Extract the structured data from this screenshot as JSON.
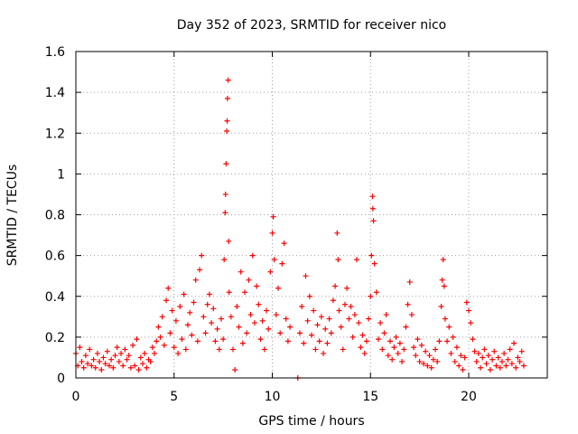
{
  "chart_data": {
    "type": "scatter",
    "title": "Day 352 of 2023, SRMTID for receiver nico",
    "xlabel": "GPS time / hours",
    "ylabel": "SRMTID / TECUs",
    "xlim": [
      0,
      24
    ],
    "ylim": [
      0,
      1.6
    ],
    "xticks": [
      0,
      5,
      10,
      15,
      20
    ],
    "yticks": [
      0,
      0.2,
      0.4,
      0.6,
      0.8,
      1,
      1.2,
      1.4,
      1.6
    ],
    "xtick_labels": [
      "0",
      "5",
      "10",
      "15",
      "20"
    ],
    "ytick_labels": [
      "0",
      "0.2",
      "0.4",
      "0.6",
      "0.8",
      "1",
      "1.2",
      "1.4",
      "1.6"
    ],
    "grid": true,
    "marker": "+",
    "color": "#ff0000",
    "series": [
      {
        "name": "SRMTID",
        "points": [
          [
            0.0,
            0.12
          ],
          [
            0.1,
            0.06
          ],
          [
            0.2,
            0.15
          ],
          [
            0.3,
            0.08
          ],
          [
            0.4,
            0.05
          ],
          [
            0.5,
            0.11
          ],
          [
            0.6,
            0.07
          ],
          [
            0.7,
            0.14
          ],
          [
            0.8,
            0.06
          ],
          [
            0.9,
            0.09
          ],
          [
            1.0,
            0.05
          ],
          [
            1.1,
            0.12
          ],
          [
            1.2,
            0.08
          ],
          [
            1.3,
            0.04
          ],
          [
            1.4,
            0.1
          ],
          [
            1.5,
            0.07
          ],
          [
            1.6,
            0.13
          ],
          [
            1.7,
            0.06
          ],
          [
            1.8,
            0.09
          ],
          [
            1.9,
            0.05
          ],
          [
            2.0,
            0.11
          ],
          [
            2.1,
            0.15
          ],
          [
            2.2,
            0.08
          ],
          [
            2.3,
            0.12
          ],
          [
            2.4,
            0.06
          ],
          [
            2.5,
            0.14
          ],
          [
            2.6,
            0.09
          ],
          [
            2.7,
            0.11
          ],
          [
            2.8,
            0.05
          ],
          [
            2.9,
            0.16
          ],
          [
            3.0,
            0.06
          ],
          [
            3.1,
            0.19
          ],
          [
            3.2,
            0.04
          ],
          [
            3.3,
            0.1
          ],
          [
            3.4,
            0.07
          ],
          [
            3.5,
            0.12
          ],
          [
            3.6,
            0.05
          ],
          [
            3.7,
            0.09
          ],
          [
            3.8,
            0.08
          ],
          [
            3.9,
            0.15
          ],
          [
            4.0,
            0.12
          ],
          [
            4.1,
            0.18
          ],
          [
            4.2,
            0.25
          ],
          [
            4.3,
            0.2
          ],
          [
            4.4,
            0.3
          ],
          [
            4.5,
            0.16
          ],
          [
            4.6,
            0.38
          ],
          [
            4.7,
            0.44
          ],
          [
            4.8,
            0.22
          ],
          [
            4.9,
            0.33
          ],
          [
            5.0,
            0.15
          ],
          [
            5.1,
            0.28
          ],
          [
            5.2,
            0.12
          ],
          [
            5.3,
            0.35
          ],
          [
            5.4,
            0.19
          ],
          [
            5.5,
            0.41
          ],
          [
            5.6,
            0.14
          ],
          [
            5.7,
            0.26
          ],
          [
            5.8,
            0.32
          ],
          [
            5.9,
            0.21
          ],
          [
            6.0,
            0.37
          ],
          [
            6.1,
            0.48
          ],
          [
            6.2,
            0.18
          ],
          [
            6.3,
            0.53
          ],
          [
            6.4,
            0.6
          ],
          [
            6.5,
            0.3
          ],
          [
            6.6,
            0.22
          ],
          [
            6.7,
            0.36
          ],
          [
            6.8,
            0.41
          ],
          [
            6.9,
            0.27
          ],
          [
            7.0,
            0.34
          ],
          [
            7.1,
            0.18
          ],
          [
            7.2,
            0.24
          ],
          [
            7.3,
            0.14
          ],
          [
            7.4,
            0.29
          ],
          [
            7.5,
            0.19
          ],
          [
            7.55,
            0.58
          ],
          [
            7.6,
            0.81
          ],
          [
            7.62,
            0.9
          ],
          [
            7.65,
            1.05
          ],
          [
            7.68,
            1.21
          ],
          [
            7.7,
            1.26
          ],
          [
            7.72,
            1.37
          ],
          [
            7.75,
            1.46
          ],
          [
            7.78,
            0.67
          ],
          [
            7.8,
            0.42
          ],
          [
            7.9,
            0.3
          ],
          [
            8.0,
            0.14
          ],
          [
            8.1,
            0.04
          ],
          [
            8.2,
            0.35
          ],
          [
            8.3,
            0.25
          ],
          [
            8.4,
            0.52
          ],
          [
            8.5,
            0.17
          ],
          [
            8.6,
            0.42
          ],
          [
            8.7,
            0.22
          ],
          [
            8.8,
            0.48
          ],
          [
            8.9,
            0.31
          ],
          [
            9.0,
            0.6
          ],
          [
            9.1,
            0.27
          ],
          [
            9.2,
            0.45
          ],
          [
            9.3,
            0.36
          ],
          [
            9.4,
            0.19
          ],
          [
            9.5,
            0.28
          ],
          [
            9.6,
            0.14
          ],
          [
            9.7,
            0.33
          ],
          [
            9.8,
            0.24
          ],
          [
            9.9,
            0.52
          ],
          [
            10.0,
            0.71
          ],
          [
            10.05,
            0.79
          ],
          [
            10.1,
            0.58
          ],
          [
            10.2,
            0.31
          ],
          [
            10.3,
            0.44
          ],
          [
            10.4,
            0.22
          ],
          [
            10.5,
            0.56
          ],
          [
            10.6,
            0.66
          ],
          [
            10.7,
            0.29
          ],
          [
            10.8,
            0.18
          ],
          [
            10.9,
            0.25
          ],
          [
            11.3,
            0.0
          ],
          [
            11.4,
            0.22
          ],
          [
            11.5,
            0.35
          ],
          [
            11.6,
            0.17
          ],
          [
            11.7,
            0.5
          ],
          [
            11.8,
            0.28
          ],
          [
            11.9,
            0.4
          ],
          [
            12.0,
            0.21
          ],
          [
            12.1,
            0.33
          ],
          [
            12.2,
            0.14
          ],
          [
            12.3,
            0.26
          ],
          [
            12.4,
            0.18
          ],
          [
            12.5,
            0.3
          ],
          [
            12.6,
            0.12
          ],
          [
            12.7,
            0.24
          ],
          [
            12.8,
            0.17
          ],
          [
            12.9,
            0.29
          ],
          [
            13.0,
            0.22
          ],
          [
            13.1,
            0.38
          ],
          [
            13.2,
            0.45
          ],
          [
            13.3,
            0.71
          ],
          [
            13.35,
            0.58
          ],
          [
            13.4,
            0.33
          ],
          [
            13.5,
            0.25
          ],
          [
            13.6,
            0.14
          ],
          [
            13.7,
            0.36
          ],
          [
            13.8,
            0.44
          ],
          [
            13.9,
            0.29
          ],
          [
            14.0,
            0.35
          ],
          [
            14.1,
            0.2
          ],
          [
            14.2,
            0.31
          ],
          [
            14.3,
            0.58
          ],
          [
            14.4,
            0.27
          ],
          [
            14.5,
            0.15
          ],
          [
            14.6,
            0.21
          ],
          [
            14.7,
            0.12
          ],
          [
            14.8,
            0.18
          ],
          [
            14.9,
            0.29
          ],
          [
            15.0,
            0.4
          ],
          [
            15.05,
            0.6
          ],
          [
            15.1,
            0.89
          ],
          [
            15.12,
            0.83
          ],
          [
            15.15,
            0.77
          ],
          [
            15.2,
            0.56
          ],
          [
            15.3,
            0.42
          ],
          [
            15.4,
            0.19
          ],
          [
            15.5,
            0.27
          ],
          [
            15.6,
            0.14
          ],
          [
            15.7,
            0.22
          ],
          [
            15.8,
            0.31
          ],
          [
            15.9,
            0.11
          ],
          [
            16.0,
            0.18
          ],
          [
            16.1,
            0.09
          ],
          [
            16.2,
            0.15
          ],
          [
            16.3,
            0.2
          ],
          [
            16.4,
            0.12
          ],
          [
            16.5,
            0.17
          ],
          [
            16.6,
            0.08
          ],
          [
            16.7,
            0.14
          ],
          [
            16.8,
            0.25
          ],
          [
            16.9,
            0.36
          ],
          [
            17.0,
            0.47
          ],
          [
            17.1,
            0.31
          ],
          [
            17.2,
            0.15
          ],
          [
            17.3,
            0.11
          ],
          [
            17.4,
            0.19
          ],
          [
            17.5,
            0.08
          ],
          [
            17.6,
            0.16
          ],
          [
            17.7,
            0.07
          ],
          [
            17.8,
            0.13
          ],
          [
            17.9,
            0.06
          ],
          [
            18.0,
            0.11
          ],
          [
            18.1,
            0.05
          ],
          [
            18.2,
            0.09
          ],
          [
            18.3,
            0.14
          ],
          [
            18.4,
            0.08
          ],
          [
            18.5,
            0.18
          ],
          [
            18.6,
            0.35
          ],
          [
            18.65,
            0.48
          ],
          [
            18.7,
            0.58
          ],
          [
            18.75,
            0.45
          ],
          [
            18.8,
            0.29
          ],
          [
            18.9,
            0.18
          ],
          [
            19.0,
            0.25
          ],
          [
            19.1,
            0.12
          ],
          [
            19.2,
            0.2
          ],
          [
            19.3,
            0.08
          ],
          [
            19.4,
            0.15
          ],
          [
            19.5,
            0.06
          ],
          [
            19.6,
            0.11
          ],
          [
            19.7,
            0.04
          ],
          [
            19.8,
            0.1
          ],
          [
            19.9,
            0.37
          ],
          [
            20.0,
            0.33
          ],
          [
            20.1,
            0.27
          ],
          [
            20.2,
            0.19
          ],
          [
            20.3,
            0.13
          ],
          [
            20.4,
            0.08
          ],
          [
            20.5,
            0.12
          ],
          [
            20.6,
            0.05
          ],
          [
            20.7,
            0.1
          ],
          [
            20.8,
            0.14
          ],
          [
            20.9,
            0.07
          ],
          [
            21.0,
            0.11
          ],
          [
            21.1,
            0.04
          ],
          [
            21.2,
            0.09
          ],
          [
            21.3,
            0.13
          ],
          [
            21.4,
            0.06
          ],
          [
            21.5,
            0.1
          ],
          [
            21.6,
            0.05
          ],
          [
            21.7,
            0.08
          ],
          [
            21.8,
            0.12
          ],
          [
            21.9,
            0.06
          ],
          [
            22.0,
            0.09
          ],
          [
            22.1,
            0.14
          ],
          [
            22.2,
            0.07
          ],
          [
            22.3,
            0.17
          ],
          [
            22.4,
            0.05
          ],
          [
            22.5,
            0.1
          ],
          [
            22.6,
            0.08
          ],
          [
            22.7,
            0.13
          ],
          [
            22.8,
            0.06
          ]
        ]
      }
    ]
  }
}
